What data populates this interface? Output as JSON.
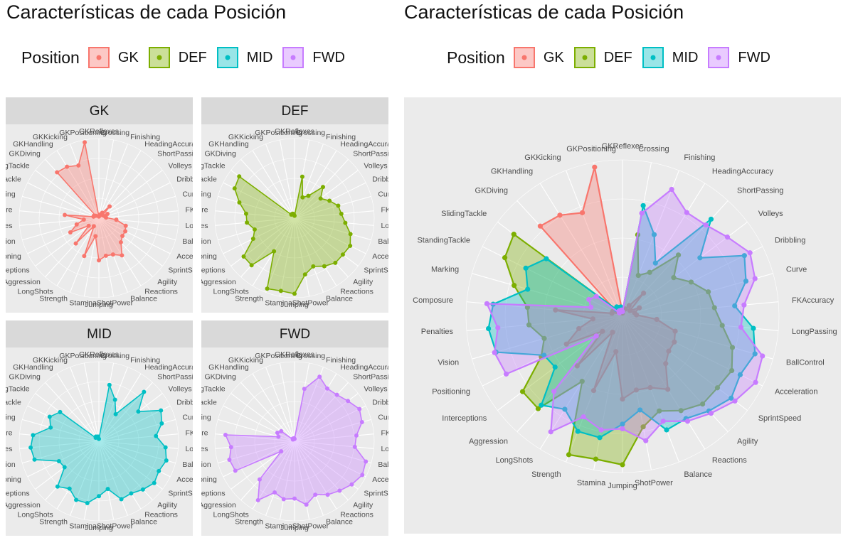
{
  "left": {
    "title": "Características de cada Posición",
    "legend_title": "Position"
  },
  "right": {
    "title": "Características de cada Posición",
    "legend_title": "Position"
  },
  "legend_items": [
    {
      "label": "GK",
      "color": "#F8766D"
    },
    {
      "label": "DEF",
      "color": "#7CAE00"
    },
    {
      "label": "MID",
      "color": "#00BFC4"
    },
    {
      "label": "FWD",
      "color": "#C77CFF"
    }
  ],
  "chart_data": {
    "type": "radar",
    "title": "Características de cada Posición",
    "legend_title": "Position",
    "legend_position": "top",
    "grid": true,
    "axes": [
      "GKReflexes",
      "Crossing",
      "Finishing",
      "HeadingAccuracy",
      "ShortPassing",
      "Volleys",
      "Dribbling",
      "Curve",
      "FKAccuracy",
      "LongPassing",
      "BallControl",
      "Acceleration",
      "SprintSpeed",
      "Agility",
      "Reactions",
      "Balance",
      "ShotPower",
      "Jumping",
      "Stamina",
      "Strength",
      "LongShots",
      "Aggression",
      "Interceptions",
      "Positioning",
      "Vision",
      "Penalties",
      "Composure",
      "Marking",
      "StandingTackle",
      "SlidingTackle",
      "GKDiving",
      "GKHandling",
      "GKKicking",
      "GKPositioning"
    ],
    "range": [
      0,
      1
    ],
    "series": [
      {
        "name": "GK",
        "values": [
          0.02,
          0.04,
          0.05,
          0.08,
          0.2,
          0.06,
          0.12,
          0.08,
          0.09,
          0.22,
          0.35,
          0.37,
          0.37,
          0.41,
          0.55,
          0.49,
          0.48,
          0.53,
          0.23,
          0.51,
          0.12,
          0.43,
          0.16,
          0.4,
          0.29,
          0.19,
          0.43,
          0.07,
          0.07,
          0.05,
          0.78,
          0.76,
          0.71,
          0.97
        ]
      },
      {
        "name": "DEF",
        "values": [
          0.03,
          0.53,
          0.28,
          0.33,
          0.53,
          0.41,
          0.49,
          0.57,
          0.59,
          0.64,
          0.73,
          0.78,
          0.76,
          0.76,
          0.71,
          0.65,
          0.72,
          0.95,
          0.93,
          0.95,
          0.49,
          0.8,
          0.8,
          0.58,
          0.52,
          0.6,
          0.61,
          0.72,
          0.84,
          0.87,
          0.06,
          0.06,
          0.06,
          0.05
        ]
      },
      {
        "name": "MID",
        "values": [
          0.03,
          0.72,
          0.56,
          0.4,
          0.84,
          0.62,
          0.87,
          0.82,
          0.72,
          0.84,
          0.88,
          0.84,
          0.87,
          0.82,
          0.77,
          0.78,
          0.61,
          0.69,
          0.79,
          0.79,
          0.7,
          0.77,
          0.54,
          0.56,
          0.84,
          0.86,
          0.83,
          0.63,
          0.69,
          0.61,
          0.06,
          0.07,
          0.06,
          0.06
        ]
      },
      {
        "name": "FWD",
        "values": [
          0.03,
          0.67,
          0.87,
          0.78,
          0.79,
          0.84,
          0.91,
          0.88,
          0.78,
          0.76,
          0.93,
          0.95,
          0.9,
          0.84,
          0.79,
          0.72,
          0.81,
          0.72,
          0.74,
          0.69,
          0.87,
          0.65,
          0.21,
          0.83,
          0.85,
          0.8,
          0.87,
          0.21,
          0.24,
          0.21,
          0.03,
          0.04,
          0.03,
          0.04
        ]
      }
    ]
  }
}
